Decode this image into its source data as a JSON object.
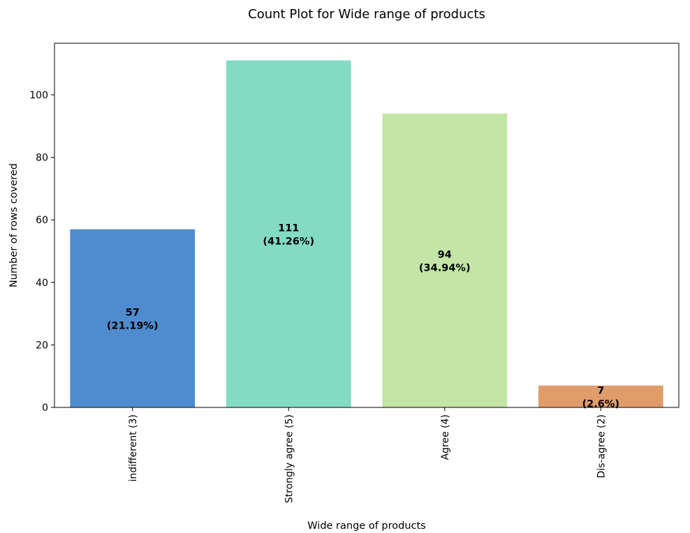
{
  "chart_data": {
    "type": "bar",
    "title": "Count Plot for Wide range of products",
    "xlabel": "Wide range of products",
    "ylabel": "Number of rows covered",
    "categories": [
      "indifferent (3)",
      "Strongly agree (5)",
      "Agree (4)",
      "Dis-agree (2)"
    ],
    "values": [
      57,
      111,
      94,
      7
    ],
    "data_labels": [
      [
        "57",
        "(21.19%)"
      ],
      [
        "111",
        "(41.26%)"
      ],
      [
        "94",
        "(34.94%)"
      ],
      [
        "7",
        "(2.6%)"
      ]
    ],
    "colors": [
      "#4f8ccf",
      "#84dbc3",
      "#c3e5a6",
      "#e09d6a"
    ],
    "ylim": [
      0,
      116.5
    ],
    "yticks": [
      0,
      20,
      40,
      60,
      80,
      100
    ],
    "grid": false,
    "legend": "none"
  }
}
